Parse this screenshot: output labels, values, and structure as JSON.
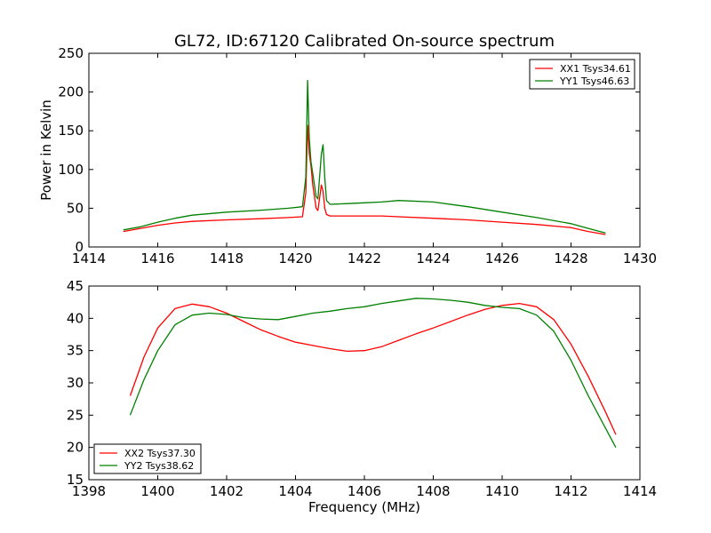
{
  "chart_data": [
    {
      "type": "line",
      "title": "GL72, ID:67120 Calibrated On-source spectrum",
      "xlabel": "",
      "ylabel": "Power in Kelvin",
      "xlim": [
        1414,
        1430
      ],
      "ylim": [
        0,
        250
      ],
      "xticks": [
        "1414",
        "1416",
        "1418",
        "1420",
        "1422",
        "1424",
        "1426",
        "1428",
        "1430"
      ],
      "yticks": [
        "0",
        "50",
        "100",
        "150",
        "200",
        "250"
      ],
      "legend_position": "top-right",
      "series": [
        {
          "name": "XX1 Tsys34.61",
          "color": "#ff0000",
          "x": [
            1415.0,
            1415.5,
            1416.0,
            1416.5,
            1417.0,
            1418.0,
            1419.0,
            1419.8,
            1420.2,
            1420.3,
            1420.35,
            1420.4,
            1420.45,
            1420.5,
            1420.6,
            1420.65,
            1420.75,
            1420.8,
            1420.85,
            1420.9,
            1421.0,
            1421.5,
            1422.0,
            1422.5,
            1423.0,
            1424.0,
            1425.0,
            1426.0,
            1427.0,
            1428.0,
            1428.5,
            1429.0
          ],
          "y": [
            20,
            24,
            28,
            31,
            33,
            35,
            36.5,
            38,
            39,
            70,
            157,
            120,
            105,
            80,
            50,
            47,
            80,
            72,
            50,
            42,
            40,
            40,
            40,
            40,
            39,
            37,
            35,
            32,
            29,
            25,
            20,
            16
          ]
        },
        {
          "name": "YY1 Tsys46.63",
          "color": "#008000",
          "x": [
            1415.0,
            1415.5,
            1416.0,
            1416.5,
            1417.0,
            1418.0,
            1419.0,
            1419.8,
            1420.2,
            1420.3,
            1420.35,
            1420.4,
            1420.45,
            1420.5,
            1420.6,
            1420.65,
            1420.75,
            1420.8,
            1420.85,
            1420.9,
            1421.0,
            1421.5,
            1422.0,
            1422.5,
            1423.0,
            1424.0,
            1425.0,
            1426.0,
            1427.0,
            1428.0,
            1428.5,
            1429.0
          ],
          "y": [
            22,
            26,
            32,
            37,
            41,
            45,
            47.5,
            50,
            52,
            90,
            215,
            140,
            110,
            95,
            65,
            62,
            120,
            132,
            90,
            60,
            55,
            56,
            57,
            58,
            60,
            58,
            52,
            45,
            38,
            30,
            24,
            18
          ]
        }
      ]
    },
    {
      "type": "line",
      "title": "",
      "xlabel": "Frequency (MHz)",
      "ylabel": "",
      "xlim": [
        1398,
        1414
      ],
      "ylim": [
        15,
        45
      ],
      "xticks": [
        "1398",
        "1400",
        "1402",
        "1404",
        "1406",
        "1408",
        "1410",
        "1412",
        "1414"
      ],
      "yticks": [
        "15",
        "20",
        "25",
        "30",
        "35",
        "40",
        "45"
      ],
      "legend_position": "bottom-left",
      "series": [
        {
          "name": "XX2 Tsys37.30",
          "color": "#ff0000",
          "x": [
            1399.2,
            1399.6,
            1400.0,
            1400.5,
            1401.0,
            1401.5,
            1402.0,
            1402.5,
            1403.0,
            1403.5,
            1404.0,
            1404.5,
            1405.0,
            1405.5,
            1406.0,
            1406.5,
            1407.0,
            1407.5,
            1408.0,
            1408.5,
            1409.0,
            1409.5,
            1410.0,
            1410.5,
            1411.0,
            1411.5,
            1412.0,
            1412.5,
            1413.0,
            1413.3
          ],
          "y": [
            28,
            34,
            38.5,
            41.5,
            42.2,
            41.8,
            40.8,
            39.5,
            38.2,
            37.2,
            36.3,
            35.8,
            35.3,
            34.9,
            35.0,
            35.6,
            36.6,
            37.6,
            38.5,
            39.5,
            40.5,
            41.4,
            42.0,
            42.3,
            41.8,
            39.8,
            36.0,
            31.0,
            25.5,
            22.0
          ]
        },
        {
          "name": "YY2 Tsys38.62",
          "color": "#008000",
          "x": [
            1399.2,
            1399.6,
            1400.0,
            1400.5,
            1401.0,
            1401.5,
            1402.0,
            1402.5,
            1403.0,
            1403.5,
            1404.0,
            1404.5,
            1405.0,
            1405.5,
            1406.0,
            1406.5,
            1407.0,
            1407.5,
            1408.0,
            1408.5,
            1409.0,
            1409.5,
            1410.0,
            1410.5,
            1411.0,
            1411.5,
            1412.0,
            1412.5,
            1413.0,
            1413.3
          ],
          "y": [
            25,
            30.5,
            35,
            39,
            40.5,
            40.8,
            40.6,
            40.1,
            39.9,
            39.8,
            40.3,
            40.8,
            41.1,
            41.5,
            41.8,
            42.3,
            42.7,
            43.1,
            43.0,
            42.8,
            42.5,
            42.0,
            41.7,
            41.5,
            40.5,
            38.0,
            33.5,
            28.0,
            23.0,
            20.0
          ]
        }
      ]
    }
  ]
}
